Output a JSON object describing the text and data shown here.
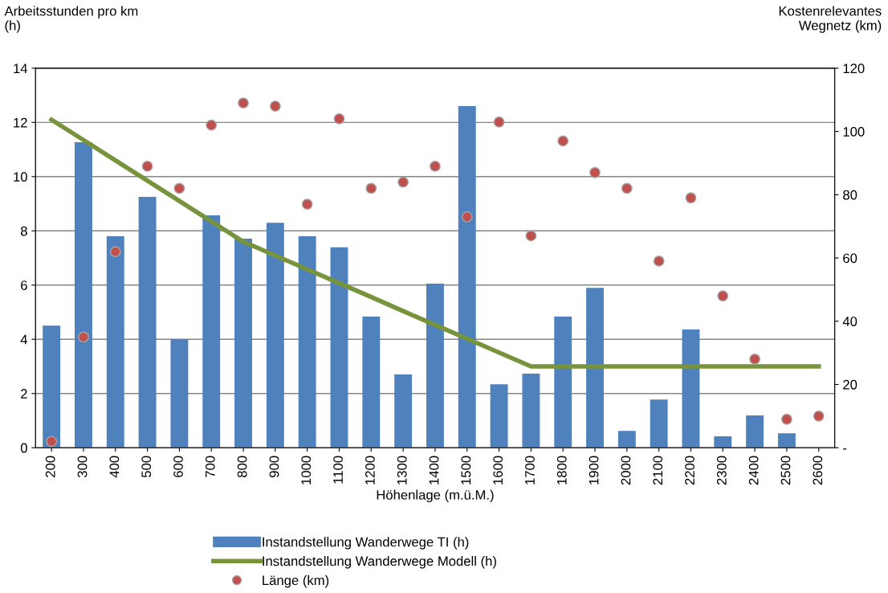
{
  "chart_data": {
    "type": "bar",
    "xlabel": "Höhenlage (m.ü.M.)",
    "ylabel": "Arbeitsstunden pro km\n(h)",
    "y2label": "Kostenrelevantes\nWegnetz (km)",
    "categories": [
      "200",
      "300",
      "400",
      "500",
      "600",
      "700",
      "800",
      "900",
      "1000",
      "1100",
      "1200",
      "1300",
      "1400",
      "1500",
      "1600",
      "1700",
      "1800",
      "1900",
      "2000",
      "2100",
      "2200",
      "2300",
      "2400",
      "2500",
      "2600"
    ],
    "series": [
      {
        "name": "Instandstellung Wanderwege TI (h)",
        "color": "#4f81bd",
        "values": [
          4.5,
          11.27,
          7.8,
          9.25,
          4.0,
          8.57,
          7.71,
          8.3,
          7.8,
          7.39,
          4.84,
          2.7,
          6.05,
          12.6,
          2.34,
          2.73,
          4.84,
          5.9,
          0.62,
          1.78,
          4.36,
          0.42,
          1.19,
          0.53,
          null
        ]
      },
      {
        "name": "Instandstellung Wanderwege Modell (h)",
        "type": "line",
        "color": "#77933c",
        "values": [
          12.1,
          11.35,
          10.6,
          9.85,
          9.1,
          8.35,
          7.6,
          7.09,
          6.58,
          6.07,
          5.56,
          5.04,
          4.53,
          4.02,
          3.51,
          3.0,
          3.0,
          3.0,
          3.0,
          3.0,
          3.0,
          3.0,
          3.0,
          3.0,
          3.0
        ]
      },
      {
        "name": "Länge (km)",
        "type": "scatter",
        "axis": "y2",
        "color": "#c0504d",
        "marker": "circle",
        "values": [
          2,
          35,
          62,
          89,
          82,
          102,
          109,
          108,
          77,
          104,
          82,
          84,
          89,
          73,
          103,
          67,
          97,
          87,
          82,
          59,
          79,
          48,
          28,
          9,
          10
        ]
      }
    ],
    "ylim": [
      0,
      14
    ],
    "yticks": [
      0,
      2,
      4,
      6,
      8,
      10,
      12,
      14
    ],
    "y2lim": [
      0,
      120
    ],
    "y2ticks": [
      {
        "value": 0,
        "label": "-"
      },
      20,
      40,
      60,
      80,
      100,
      120
    ],
    "grid": "y",
    "legend": "bottom"
  }
}
